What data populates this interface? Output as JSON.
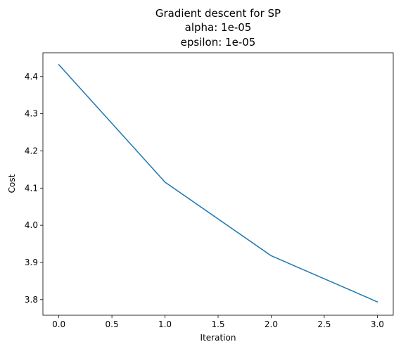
{
  "chart_data": {
    "type": "line",
    "title_lines": [
      "Gradient descent for SP",
      "alpha: 1e-05",
      "epsilon: 1e-05"
    ],
    "xlabel": "Iteration",
    "ylabel": "Cost",
    "x": [
      0,
      1,
      2,
      3
    ],
    "series": [
      {
        "values": [
          4.432,
          4.116,
          3.918,
          3.794
        ]
      }
    ],
    "xlim": [
      -0.15,
      3.15
    ],
    "ylim": [
      3.758,
      4.464
    ],
    "xticks": [
      0.0,
      0.5,
      1.0,
      1.5,
      2.0,
      2.5,
      3.0
    ],
    "xtick_labels": [
      "0.0",
      "0.5",
      "1.0",
      "1.5",
      "2.0",
      "2.5",
      "3.0"
    ],
    "yticks": [
      3.8,
      3.9,
      4.0,
      4.1,
      4.2,
      4.3,
      4.4
    ],
    "ytick_labels": [
      "3.8",
      "3.9",
      "4.0",
      "4.1",
      "4.2",
      "4.3",
      "4.4"
    ],
    "line_color": "#1f77b4",
    "grid": false,
    "legend": "none"
  }
}
